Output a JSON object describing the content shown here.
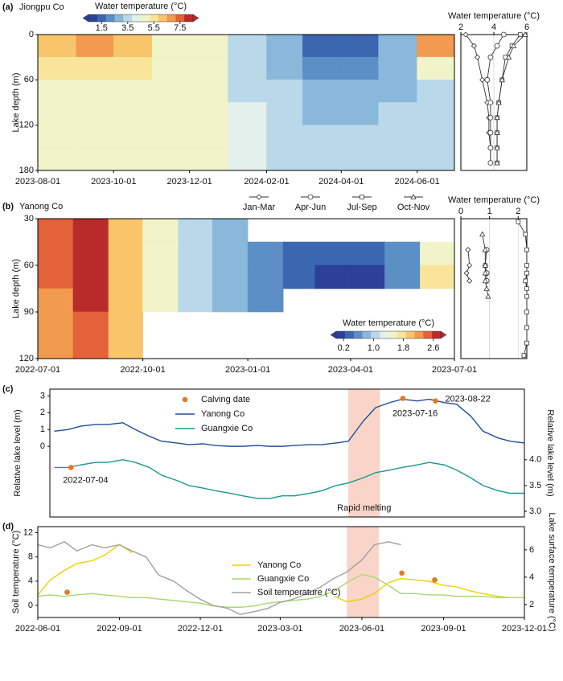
{
  "chart_data": [
    {
      "type": "heatmap",
      "panel": "(a)",
      "title": "Jiongpu Co",
      "ylabel": "Lake depth (m)",
      "x": [
        "2023-08-01",
        "2023-09-01",
        "2023-10-01",
        "2023-11-01",
        "2023-12-01",
        "2024-01-01",
        "2024-02-01",
        "2024-03-01",
        "2024-04-01",
        "2024-05-01",
        "2024-06-01",
        "2024-07-01"
      ],
      "depths": [
        0,
        30,
        60,
        90,
        120,
        150,
        180
      ],
      "values": [
        [
          6,
          6.5,
          6,
          5,
          4.5,
          3.5,
          2.5,
          1.5,
          1.5,
          2.5,
          7
        ],
        [
          5.5,
          5.5,
          5.5,
          5,
          4.5,
          3.5,
          3,
          2,
          2,
          3,
          5
        ],
        [
          5,
          5,
          5,
          5,
          4.5,
          3.5,
          3.5,
          2.5,
          2.5,
          3,
          3.5
        ],
        [
          4.5,
          4.5,
          5,
          5,
          4.5,
          4,
          3.5,
          3,
          3,
          3.5,
          3.5
        ],
        [
          4.5,
          4.5,
          5,
          5,
          4.5,
          4,
          3.5,
          3.5,
          3.5,
          3.5,
          3.5
        ],
        [
          4.5,
          4.5,
          4.5,
          4.5,
          4.5,
          4,
          3.5,
          3.5,
          3.5,
          3.5,
          3.5
        ]
      ],
      "xlim": [
        "2023-08-01",
        "2024-07-01"
      ],
      "xticks": [
        "2023-08-01",
        "2023-10-01",
        "2023-12-01",
        "2024-02-01",
        "2024-04-01",
        "2024-06-01"
      ],
      "ylim": [
        0,
        180
      ],
      "yticks": [
        0,
        60,
        120,
        180
      ],
      "y_inverted": true,
      "colorbar": {
        "label": "Water temperature (°C)",
        "clim": [
          0.5,
          8.5
        ],
        "ticks": [
          1.5,
          3.5,
          5.5,
          7.5
        ],
        "loc": "top",
        "colors": [
          "#2c3f99",
          "#3a67b0",
          "#5b8fc6",
          "#8ab8da",
          "#b9d9ea",
          "#e3f0ec",
          "#f1f3c9",
          "#f8e59a",
          "#f9c56b",
          "#f29a4f",
          "#e4623a",
          "#b92a2a"
        ]
      }
    },
    {
      "type": "profile",
      "xlabel": "Water temperature (°C)",
      "depths": [
        0,
        15,
        30,
        60,
        90,
        110,
        130,
        150,
        170
      ],
      "xlim": [
        2,
        6
      ],
      "xticks": [
        2,
        4,
        6
      ],
      "ylim": [
        0,
        180
      ],
      "y_inverted": true,
      "color": "#333333",
      "grid": true,
      "series": [
        {
          "marker": "diamond",
          "values": [
            2.3,
            2.8,
            3.0,
            3.3,
            3.6,
            3.7,
            3.7,
            3.8,
            3.8
          ]
        },
        {
          "marker": "circle",
          "values": [
            4.6,
            4.2,
            3.8,
            3.6,
            3.8,
            3.8,
            3.8,
            3.8,
            3.8
          ]
        },
        {
          "marker": "square",
          "values": [
            5.6,
            5.1,
            4.7,
            4.5,
            4.3,
            4.2,
            4.2,
            4.2,
            4.2
          ]
        },
        {
          "marker": "triangle",
          "values": [
            5.9,
            5.2,
            4.9,
            4.5,
            4.3,
            4.2,
            4.2,
            4.2,
            4.2
          ]
        }
      ]
    },
    {
      "type": "heatmap",
      "panel": "(b)",
      "title": "Yanong Co",
      "ylabel": "Lake depth (m)",
      "x": [
        "2022-07-01",
        "2022-08-01",
        "2022-09-01",
        "2022-10-01",
        "2022-11-01",
        "2022-12-01",
        "2023-01-01",
        "2023-02-01",
        "2023-03-01",
        "2023-04-01",
        "2023-05-01",
        "2023-06-01",
        "2023-07-01"
      ],
      "depths": [
        30,
        45,
        60,
        75,
        90,
        105,
        120
      ],
      "values": [
        [
          2.4,
          2.6,
          2.0,
          1.4,
          1.1,
          0.9,
          null,
          null,
          null,
          null,
          null,
          null
        ],
        [
          2.4,
          2.6,
          2.0,
          1.4,
          1.1,
          0.9,
          0.6,
          0.4,
          0.3,
          0.3,
          0.6,
          1.6
        ],
        [
          2.4,
          2.6,
          2.0,
          1.4,
          1.1,
          0.9,
          0.5,
          0.3,
          0.2,
          0.2,
          0.5,
          1.8
        ],
        [
          2.3,
          2.6,
          2.0,
          1.4,
          1.1,
          0.9,
          0.5,
          null,
          null,
          null,
          null,
          null
        ],
        [
          2.3,
          2.5,
          2.0,
          null,
          null,
          null,
          null,
          null,
          null,
          null,
          null,
          null
        ],
        [
          2.3,
          2.5,
          2.0,
          null,
          null,
          null,
          null,
          null,
          null,
          null,
          null,
          null
        ]
      ],
      "xlim": [
        "2022-07-01",
        "2023-07-01"
      ],
      "xticks": [
        "2022-07-01",
        "2022-10-01",
        "2023-01-01",
        "2023-04-01",
        "2023-07-01"
      ],
      "ylim": [
        30,
        120
      ],
      "yticks": [
        30,
        60,
        90,
        120
      ],
      "y_inverted": true,
      "colorbar": {
        "label": "Water temperature (°C)",
        "clim": [
          0,
          2.8
        ],
        "ticks": [
          0.2,
          {
            "value": 1,
            "label": "1.0"
          },
          1.8,
          2.6
        ],
        "loc": "lower right",
        "colors": [
          "#2c3f99",
          "#3a67b0",
          "#5b8fc6",
          "#8ab8da",
          "#b9d9ea",
          "#e3f0ec",
          "#f1f3c9",
          "#f8e59a",
          "#f9c56b",
          "#f29a4f",
          "#e4623a",
          "#b92a2a"
        ]
      }
    },
    {
      "type": "profile",
      "xlabel": "Water temperature (°C)",
      "depths": [
        32,
        40,
        50,
        60,
        65,
        70,
        75,
        80,
        90,
        100,
        110,
        118
      ],
      "xlim": [
        0,
        2.3
      ],
      "xticks": [
        0,
        1,
        2
      ],
      "ylim": [
        30,
        120
      ],
      "y_inverted": true,
      "color": "#333333",
      "grid": true,
      "series": [
        {
          "name": "Jan-Mar",
          "marker": "diamond",
          "values": [
            null,
            null,
            0.25,
            0.3,
            0.2,
            0.3,
            null,
            null,
            null,
            null,
            null,
            null
          ]
        },
        {
          "name": "Apr-Jun",
          "marker": "circle",
          "values": [
            null,
            null,
            0.9,
            0.85,
            0.9,
            0.9,
            null,
            null,
            null,
            null,
            null,
            null
          ]
        },
        {
          "name": "Jul-Sep",
          "marker": "square",
          "values": [
            2.0,
            2.25,
            2.3,
            2.3,
            2.3,
            2.25,
            2.3,
            2.3,
            2.3,
            2.3,
            2.3,
            2.2
          ]
        },
        {
          "name": "Oct-Nov",
          "marker": "triangle",
          "values": [
            null,
            0.75,
            0.85,
            0.85,
            0.85,
            0.85,
            0.9,
            0.95,
            null,
            null,
            null,
            null
          ]
        }
      ]
    },
    {
      "type": "line",
      "panel": "(c)",
      "ylabel": "Relative lake level (m)",
      "y2label": "Relative lake level (m)",
      "x": [
        "2022-06-15",
        "2022-07-01",
        "2022-07-15",
        "2022-08-01",
        "2022-08-15",
        "2022-09-01",
        "2022-09-15",
        "2022-10-01",
        "2022-10-15",
        "2022-11-01",
        "2022-11-15",
        "2022-12-01",
        "2022-12-15",
        "2023-01-01",
        "2023-01-15",
        "2023-02-01",
        "2023-02-15",
        "2023-03-01",
        "2023-03-15",
        "2023-04-01",
        "2023-04-15",
        "2023-05-01",
        "2023-05-15",
        "2023-06-01",
        "2023-06-15",
        "2023-07-01",
        "2023-07-15",
        "2023-08-01",
        "2023-08-15",
        "2023-09-01",
        "2023-09-15",
        "2023-10-01",
        "2023-10-15",
        "2023-11-01",
        "2023-11-15",
        "2023-12-01"
      ],
      "xlim": [
        "2022-06-10",
        "2023-12-01"
      ],
      "ylim": [
        -4.2,
        3.4
      ],
      "yticks": [
        0,
        1,
        2,
        3
      ],
      "y2lim": [
        2.89,
        5.37
      ],
      "y2ticks": [
        {
          "value": 3,
          "label": "3.0"
        },
        3.5,
        {
          "value": 4,
          "label": "4.0"
        }
      ],
      "series": [
        {
          "name": "Yanong Co",
          "color": "#1f4e9c",
          "values": [
            0.9,
            1.0,
            1.2,
            1.3,
            1.3,
            1.4,
            1.0,
            0.6,
            0.3,
            0.2,
            0.1,
            0.15,
            0.05,
            0.0,
            0.0,
            0.05,
            0.0,
            0.0,
            0.05,
            0.1,
            0.1,
            0.2,
            0.3,
            1.5,
            2.3,
            2.6,
            2.8,
            2.7,
            2.8,
            2.6,
            2.5,
            1.8,
            0.9,
            0.5,
            0.3,
            0.2
          ]
        },
        {
          "name": "Guangxie Co",
          "color": "#17998f",
          "axis": "y2",
          "values": [
            3.85,
            3.85,
            3.9,
            3.95,
            3.95,
            4.0,
            3.95,
            3.85,
            3.7,
            3.6,
            3.5,
            3.45,
            3.4,
            3.35,
            3.3,
            3.25,
            3.25,
            3.3,
            3.3,
            3.35,
            3.4,
            3.5,
            3.55,
            3.65,
            3.75,
            3.8,
            3.85,
            3.9,
            3.95,
            3.9,
            3.8,
            3.65,
            3.5,
            3.4,
            3.35,
            3.35
          ]
        }
      ],
      "points": {
        "name": "Calving date",
        "color": "#e07b20",
        "x": [
          "2022-07-04",
          "2023-07-16",
          "2023-08-22"
        ],
        "values": [
          3.85,
          2.85,
          2.7
        ],
        "axes": [
          "y2",
          "y",
          "y"
        ]
      },
      "shade": {
        "x": [
          "2023-05-15",
          "2023-06-20"
        ],
        "label": "Rapid melting",
        "color": "#f8d5c8"
      },
      "legend": "upper left"
    },
    {
      "type": "line",
      "panel": "(d)",
      "ylabel": "Soil temperature (°C)",
      "y2label": "Lake surface temperature (°C)",
      "x": [
        "2022-06-01",
        "2022-06-15",
        "2022-07-01",
        "2022-07-15",
        "2022-08-01",
        "2022-08-15",
        "2022-09-01",
        "2022-09-15",
        "2022-10-01",
        "2022-10-15",
        "2022-11-01",
        "2022-11-15",
        "2022-12-01",
        "2022-12-15",
        "2023-01-01",
        "2023-01-15",
        "2023-02-01",
        "2023-02-15",
        "2023-03-01",
        "2023-03-15",
        "2023-04-01",
        "2023-04-15",
        "2023-05-01",
        "2023-05-15",
        "2023-06-01",
        "2023-06-15",
        "2023-07-01",
        "2023-07-15",
        "2023-08-01",
        "2023-08-15",
        "2023-09-01",
        "2023-09-15",
        "2023-10-01",
        "2023-10-15",
        "2023-11-01",
        "2023-11-15",
        "2023-12-01"
      ],
      "xlim": [
        "2022-06-01",
        "2023-12-01"
      ],
      "xticks": [
        "2022-06-01",
        "2022-09-01",
        "2022-12-01",
        "2023-03-01",
        "2023-06-01",
        "2023-09-01",
        "2023-12-01"
      ],
      "ylim": [
        -2,
        13
      ],
      "yticks": [
        0,
        4,
        8,
        12
      ],
      "y2lim": [
        1.05,
        7.7
      ],
      "y2ticks": [
        2,
        4,
        6
      ],
      "series": [
        {
          "name": "Yanong Co",
          "color": "#f0d000",
          "axis": "y2",
          "values": [
            2.7,
            3.8,
            4.5,
            5.0,
            5.2,
            5.6,
            6.4,
            5.8,
            null,
            null,
            null,
            null,
            null,
            null,
            null,
            null,
            null,
            null,
            null,
            null,
            null,
            null,
            2.6,
            2.2,
            2.4,
            2.8,
            3.6,
            3.9,
            3.8,
            3.7,
            3.4,
            3.3,
            3.0,
            2.8,
            2.6,
            2.5,
            null
          ]
        },
        {
          "name": "Guangxie Co",
          "color": "#a8d86a",
          "axis": "y2",
          "values": [
            2.6,
            2.7,
            2.6,
            2.7,
            2.8,
            2.7,
            2.6,
            2.5,
            2.5,
            2.4,
            2.3,
            2.2,
            2.1,
            1.9,
            1.8,
            1.8,
            1.9,
            2.1,
            2.2,
            2.3,
            2.4,
            2.6,
            3.0,
            3.6,
            4.2,
            4.0,
            3.4,
            2.8,
            2.8,
            2.7,
            2.7,
            2.6,
            2.6,
            2.6,
            2.5,
            2.5,
            2.5
          ]
        },
        {
          "name": "Soil temperature (°C)",
          "color": "#a0a0a0",
          "values": [
            10,
            9.5,
            10.5,
            9,
            10,
            9.5,
            10,
            9,
            8,
            5,
            4,
            2.5,
            1,
            0,
            -0.5,
            -1.5,
            -1,
            -0.5,
            0.5,
            1,
            2,
            3,
            4.5,
            5.5,
            7.5,
            10,
            10.5,
            10,
            null,
            null,
            null,
            null,
            null,
            null,
            null,
            null,
            null
          ]
        }
      ],
      "points": {
        "color": "#e07b20",
        "x": [
          "2022-07-04",
          "2023-07-16",
          "2023-08-22"
        ],
        "values": [
          2.9,
          4.3,
          3.8
        ],
        "axes": [
          "y2",
          "y2",
          "y2"
        ]
      },
      "shade": {
        "x": [
          "2023-05-15",
          "2023-06-20"
        ],
        "color": "#f8d5c8"
      },
      "legend": "center"
    }
  ]
}
